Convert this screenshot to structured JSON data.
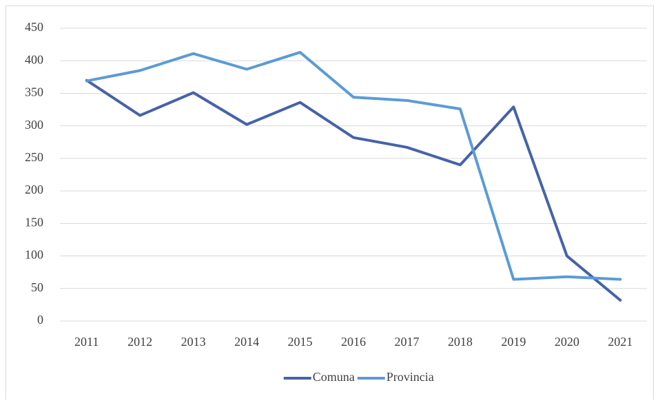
{
  "chart_data": {
    "type": "line",
    "categories": [
      "2011",
      "2012",
      "2013",
      "2014",
      "2015",
      "2016",
      "2017",
      "2018",
      "2019",
      "2020",
      "2021"
    ],
    "series": [
      {
        "name": "Comuna",
        "color": "#4662a8",
        "values": [
          370,
          316,
          351,
          302,
          336,
          282,
          267,
          240,
          329,
          100,
          32
        ]
      },
      {
        "name": "Provincia",
        "color": "#5b9bd5",
        "values": [
          369,
          385,
          411,
          387,
          413,
          344,
          339,
          326,
          64,
          68,
          64
        ]
      }
    ],
    "ylim": [
      0,
      450
    ],
    "yticks": [
      0,
      50,
      100,
      150,
      200,
      250,
      300,
      350,
      400,
      450
    ],
    "grid": true,
    "legend": "bottom"
  }
}
